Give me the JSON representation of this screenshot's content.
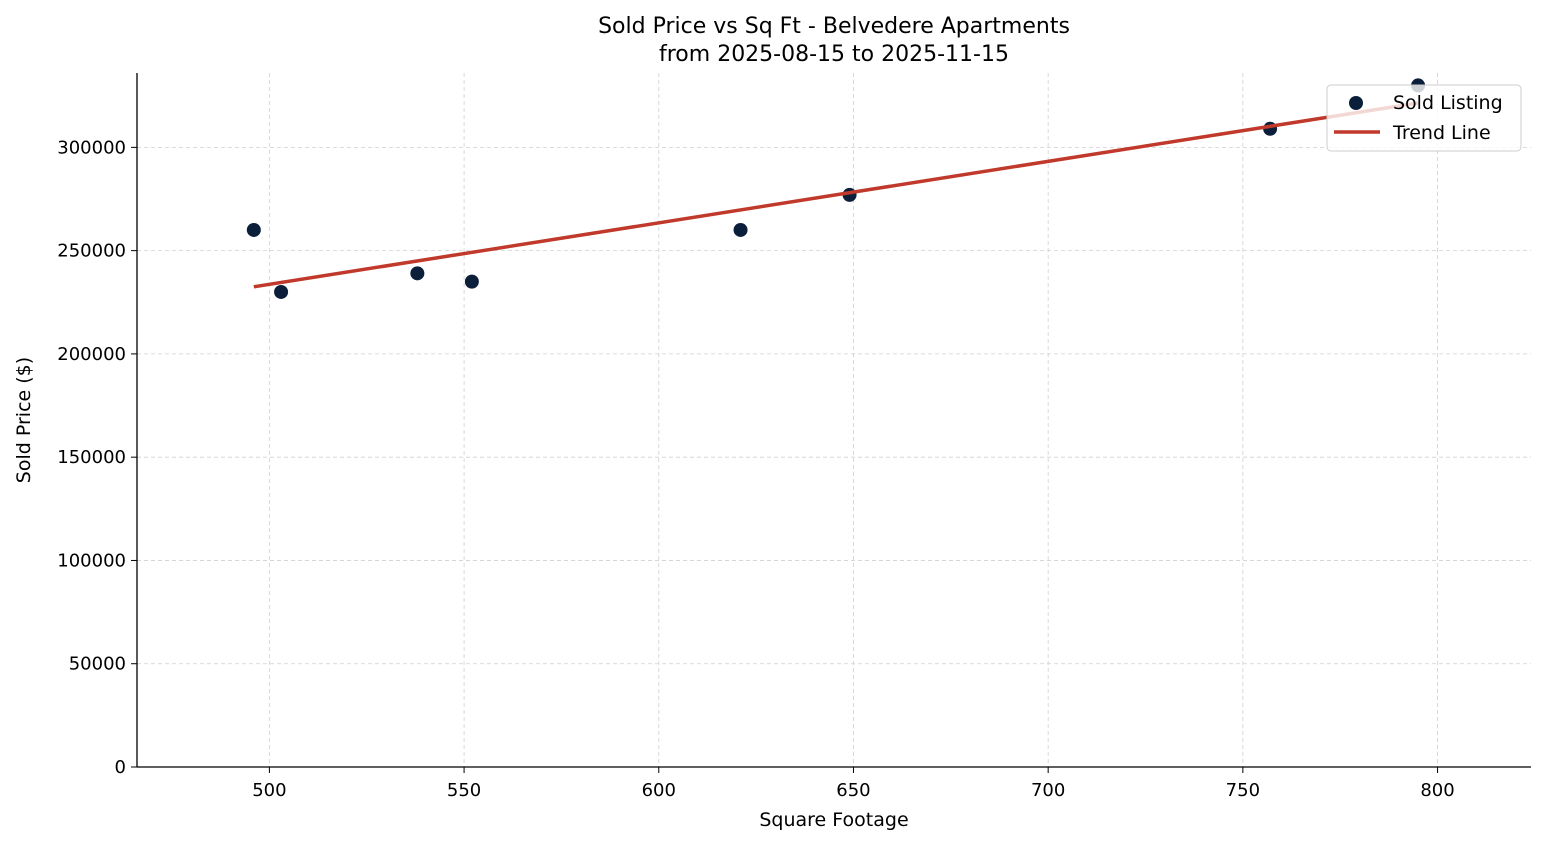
{
  "chart_data": {
    "type": "scatter",
    "title": "Sold Price vs Sq Ft - Belvedere Apartments",
    "subtitle": "from 2025-08-15 to 2025-11-15",
    "xlabel": "Square Footage",
    "ylabel": "Sold Price ($)",
    "xlim": [
      466,
      824
    ],
    "ylim": [
      0,
      336000
    ],
    "xticks": [
      "500",
      "550",
      "600",
      "650",
      "700",
      "750",
      "800"
    ],
    "yticks": [
      "0",
      "50000",
      "100000",
      "150000",
      "200000",
      "250000",
      "300000"
    ],
    "grid": true,
    "legend_position": "top-right",
    "series": [
      {
        "name": "Sold Listing",
        "kind": "scatter",
        "color": "#0b1f3a",
        "points": [
          {
            "x": 496,
            "y": 260000
          },
          {
            "x": 503,
            "y": 230000
          },
          {
            "x": 538,
            "y": 239000
          },
          {
            "x": 552,
            "y": 235000
          },
          {
            "x": 621,
            "y": 260000
          },
          {
            "x": 649,
            "y": 277000
          },
          {
            "x": 757,
            "y": 309000
          },
          {
            "x": 795,
            "y": 330000
          }
        ]
      },
      {
        "name": "Trend Line",
        "kind": "line",
        "color": "#c0392b",
        "points": [
          {
            "x": 496,
            "y": 232500
          },
          {
            "x": 795,
            "y": 321500
          }
        ]
      }
    ]
  }
}
